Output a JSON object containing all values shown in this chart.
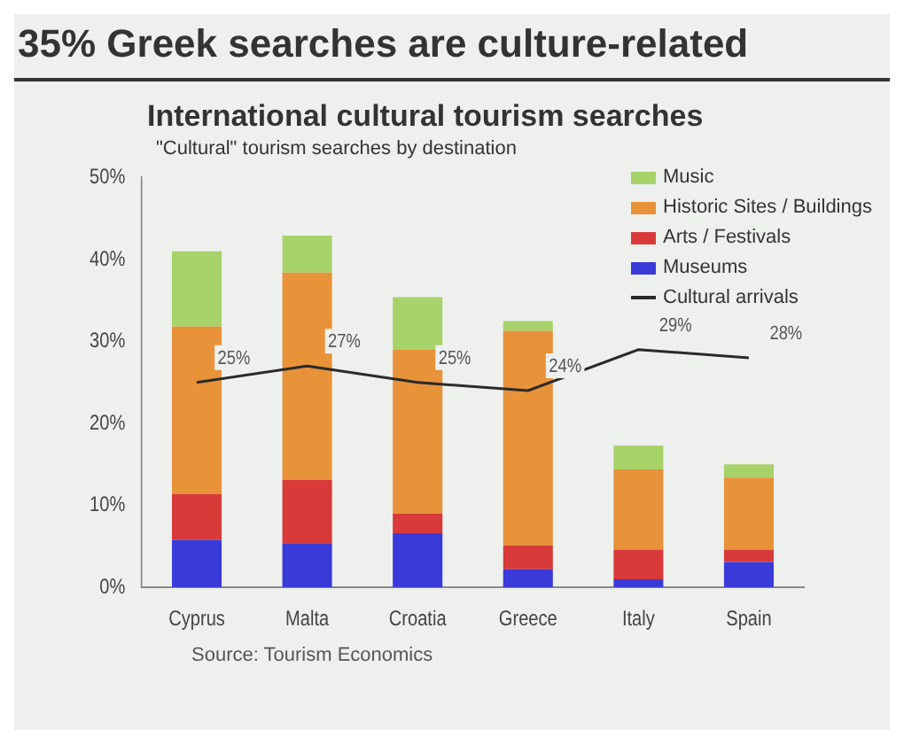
{
  "chart_data": {
    "type": "bar",
    "title": "35% Greek searches are culture-related",
    "subtitle": "International cultural tourism searches",
    "annotations": [
      "\"Cultural\" tourism searches by destination",
      "Source: Tourism Economics"
    ],
    "categories": [
      "Cyprus",
      "Malta",
      "Croatia",
      "Greece",
      "Italy",
      "Spain"
    ],
    "stacked": true,
    "series": [
      {
        "name": "Museums",
        "color": "#3a3ad8",
        "values": [
          5.8,
          5.4,
          6.6,
          2.2,
          1.0,
          3.1
        ]
      },
      {
        "name": "Arts / Festivals",
        "color": "#d83a3a",
        "values": [
          5.6,
          7.7,
          2.4,
          2.9,
          3.6,
          1.5
        ]
      },
      {
        "name": "Historic Sites / Buildings",
        "color": "#e8923a",
        "values": [
          20.4,
          25.3,
          20.0,
          26.2,
          9.8,
          8.8
        ]
      },
      {
        "name": "Music",
        "color": "#a8d26a",
        "values": [
          9.2,
          4.5,
          6.4,
          1.2,
          2.9,
          1.6
        ]
      },
      {
        "name": "Cultural arrivals",
        "type": "line",
        "color": "#2a2a2a",
        "values": [
          25,
          27,
          25,
          24,
          29,
          28
        ],
        "value_labels": [
          "25%",
          "27%",
          "25%",
          "24%",
          "29%",
          "28%"
        ]
      }
    ],
    "ylim": [
      0,
      50
    ],
    "yticks": [
      {
        "value": 0,
        "label": "0%"
      },
      {
        "value": 10,
        "label": "10%"
      },
      {
        "value": 20,
        "label": "20%"
      },
      {
        "value": 30,
        "label": "30%"
      },
      {
        "value": 40,
        "label": "40%"
      },
      {
        "value": 50,
        "label": "50%"
      }
    ],
    "grid": false,
    "legend": "top right",
    "marker": "none"
  }
}
